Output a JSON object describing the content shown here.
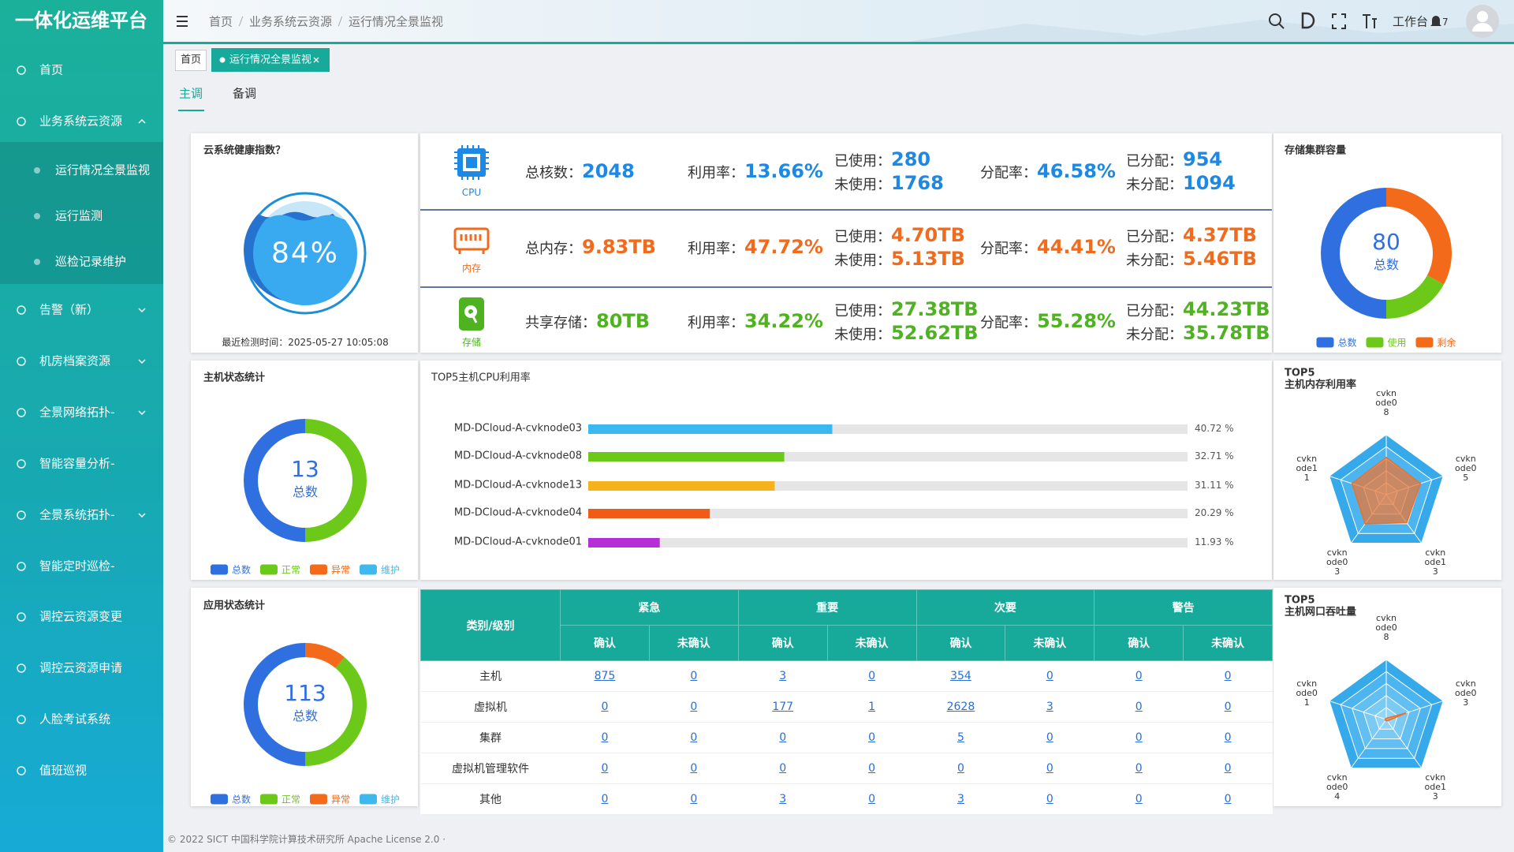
{
  "sidebar": {
    "title": "一体化运维平台",
    "menu": [
      {
        "label": "首页"
      },
      {
        "label": "业务系统云资源",
        "arrow": "up",
        "children": [
          "运行情况全景监视",
          "运行监测",
          "巡检记录维护"
        ]
      },
      {
        "label": "告警（新）",
        "arrow": "down"
      },
      {
        "label": "机房档案资源",
        "arrow": "down"
      },
      {
        "label": "全景网络拓扑-",
        "arrow": "down"
      },
      {
        "label": "智能容量分析-"
      },
      {
        "label": "全景系统拓扑-",
        "arrow": "down"
      },
      {
        "label": "智能定时巡检-"
      },
      {
        "label": "调控云资源变更"
      },
      {
        "label": "调控云资源申请"
      },
      {
        "label": "人脸考试系统"
      },
      {
        "label": "值班巡视"
      }
    ]
  },
  "header": {
    "breadcrumb": [
      "首页",
      "业务系统云资源",
      "运行情况全景监视"
    ],
    "workbench": "工作台",
    "notice_count": 7
  },
  "tabs": [
    "首页",
    "运行情况全景监视"
  ],
  "subtabs": [
    "主调",
    "备调"
  ],
  "health": {
    "title": "云系统健康指数？",
    "value": 84,
    "value_label": "84%",
    "check_time": "最近检测时间：2025-05-27 10:05:08"
  },
  "resources": [
    {
      "icon_label": "CPU",
      "color": "#1e88e5",
      "items": [
        {
          "label": "总核数：",
          "value": "2048"
        },
        {
          "label": "利用率：",
          "value": "13.66%"
        },
        {
          "label": "已使用：",
          "value": "280"
        },
        {
          "label": "未使用：",
          "value": "1768"
        },
        {
          "label": "分配率：",
          "value": "46.58%"
        },
        {
          "label": "已分配：",
          "value": "954"
        },
        {
          "label": "未分配：",
          "value": "1094"
        }
      ]
    },
    {
      "icon_label": "内存",
      "color": "#f26b1d",
      "items": [
        {
          "label": "总内存：",
          "value": "9.83TB"
        },
        {
          "label": "利用率：",
          "value": "47.72%"
        },
        {
          "label": "已使用：",
          "value": "4.70TB"
        },
        {
          "label": "未使用：",
          "value": "5.13TB"
        },
        {
          "label": "分配率：",
          "value": "44.41%"
        },
        {
          "label": "已分配：",
          "value": "4.37TB"
        },
        {
          "label": "未分配：",
          "value": "5.46TB"
        }
      ]
    },
    {
      "icon_label": "存储",
      "color": "#4fb321",
      "items": [
        {
          "label": "共享存储：",
          "value": "80TB"
        },
        {
          "label": "利用率：",
          "value": "34.22%"
        },
        {
          "label": "已使用：",
          "value": "27.38TB"
        },
        {
          "label": "未使用：",
          "value": "52.62TB"
        },
        {
          "label": "分配率：",
          "value": "55.28%"
        },
        {
          "label": "已分配：",
          "value": "44.23TB"
        },
        {
          "label": "未分配：",
          "value": "35.78TB"
        }
      ]
    }
  ],
  "storage": {
    "type": "donut",
    "title": "存储集群容量",
    "series": [
      {
        "name": "总数",
        "color": "#2f6fe0",
        "value": 80
      },
      {
        "name": "使用",
        "color": "#6cc91a",
        "value": 27.38
      },
      {
        "name": "剩余",
        "color": "#f36a1a",
        "value": 52.62
      }
    ]
  },
  "host_status": {
    "type": "donut",
    "title": "主机状态统计",
    "series": [
      {
        "name": "总数",
        "color": "#2f6fe0",
        "value": 13
      },
      {
        "name": "正常",
        "color": "#6cc91a",
        "value": 13
      },
      {
        "name": "异常",
        "color": "#f36a1a",
        "value": 0
      },
      {
        "name": "维护",
        "color": "#3fb8ee",
        "value": 0
      }
    ]
  },
  "app_status": {
    "type": "donut",
    "title": "应用状态统计",
    "series": [
      {
        "name": "总数",
        "color": "#2f6fe0",
        "value": 113
      },
      {
        "name": "正常",
        "color": "#6cc91a",
        "value": 88
      },
      {
        "name": "异常",
        "color": "#f36a1a",
        "value": 25
      },
      {
        "name": "维护",
        "color": "#3fb8ee",
        "value": 0
      }
    ]
  },
  "cpu_top5": {
    "type": "bar",
    "title": "TOP5主机CPU利用率",
    "xlim": [
      0,
      100
    ],
    "categories": [
      "MD-DCloud-A-cvknode03",
      "MD-DCloud-A-cvknode08",
      "MD-DCloud-A-cvknode13",
      "MD-DCloud-A-cvknode04",
      "MD-DCloud-A-cvknode01"
    ],
    "values": [
      40.72,
      32.71,
      31.11,
      20.29,
      11.93
    ],
    "value_labels": [
      "40.72 %",
      "32.71 %",
      "31.11 %",
      "20.29 %",
      "11.93 %"
    ],
    "colors": [
      "#3bb9ef",
      "#6cc91a",
      "#f6b21a",
      "#f05c16",
      "#b62fd6"
    ]
  },
  "mem_top5": {
    "type": "radar",
    "title": [
      "TOP5",
      "主机内存利用率"
    ],
    "max": 100,
    "indicators": [
      "cvknode08",
      "cvknode05",
      "cvknode13",
      "cvknode03",
      "cvknode11"
    ],
    "values": [
      62,
      60,
      58,
      60,
      60
    ],
    "color": "#e8702a"
  },
  "net_top5": {
    "type": "radar",
    "title": [
      "TOP5",
      "主机网口吞吐量"
    ],
    "max": 100,
    "indicators": [
      "cvknode08",
      "cvknode03",
      "cvknode13",
      "cvknode04",
      "cvknode01"
    ],
    "values": [
      2,
      35,
      3,
      2,
      2
    ],
    "color": "#e8702a"
  },
  "table": {
    "corner": "类别/级别",
    "groups": [
      "紧急",
      "重要",
      "次要",
      "警告"
    ],
    "subheaders": [
      "确认",
      "未确认"
    ],
    "rows": [
      {
        "label": "主机",
        "values": [
          875,
          0,
          3,
          0,
          354,
          0,
          0,
          0
        ]
      },
      {
        "label": "虚拟机",
        "values": [
          0,
          0,
          177,
          1,
          2628,
          3,
          0,
          0
        ]
      },
      {
        "label": "集群",
        "values": [
          0,
          0,
          0,
          0,
          5,
          0,
          0,
          0
        ]
      },
      {
        "label": "虚拟机管理软件",
        "values": [
          0,
          0,
          0,
          0,
          0,
          0,
          0,
          0
        ]
      },
      {
        "label": "其他",
        "values": [
          0,
          0,
          3,
          0,
          3,
          0,
          0,
          0
        ]
      }
    ]
  },
  "footer": "© 2022 SICT 中国科学院计算技术研究所 Apache License 2.0 ·"
}
